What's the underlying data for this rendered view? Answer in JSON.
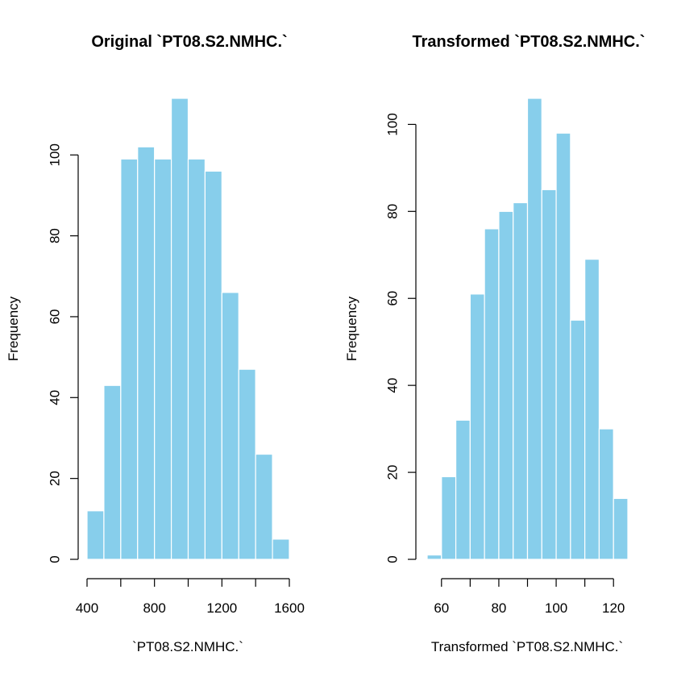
{
  "chart_data": [
    {
      "type": "bar",
      "title": "Original `PT08.S2.NMHC.`",
      "xlabel": "`PT08.S2.NMHC.`",
      "ylabel": "Frequency",
      "bin_edges": [
        400,
        500,
        600,
        700,
        800,
        900,
        1000,
        1100,
        1200,
        1300,
        1400,
        1500,
        1600
      ],
      "values": [
        12,
        43,
        99,
        102,
        99,
        114,
        99,
        96,
        66,
        47,
        26,
        5
      ],
      "xticks": [
        400,
        800,
        1200,
        1600
      ],
      "xticks_minor": [
        400,
        600,
        800,
        1000,
        1200,
        1400,
        1600
      ],
      "yticks": [
        0,
        20,
        40,
        60,
        80,
        100
      ],
      "xlim": [
        400,
        1600
      ],
      "ylim": [
        0,
        114
      ],
      "bar_color": "#87CEEB",
      "grid": false
    },
    {
      "type": "bar",
      "title": "Transformed `PT08.S2.NMHC.`",
      "xlabel": "Transformed `PT08.S2.NMHC.`",
      "ylabel": "Frequency",
      "bin_edges": [
        55,
        60,
        65,
        70,
        75,
        80,
        85,
        90,
        95,
        100,
        105,
        110,
        115,
        120,
        125
      ],
      "values": [
        1,
        19,
        32,
        61,
        76,
        80,
        82,
        106,
        85,
        98,
        55,
        69,
        30,
        14
      ],
      "xticks": [
        60,
        80,
        100,
        120
      ],
      "xticks_minor": [
        60,
        70,
        80,
        90,
        100,
        110,
        120
      ],
      "yticks": [
        0,
        20,
        40,
        60,
        80,
        100
      ],
      "xlim": [
        55,
        125
      ],
      "ylim": [
        0,
        106
      ],
      "bar_color": "#87CEEB",
      "grid": false
    }
  ]
}
